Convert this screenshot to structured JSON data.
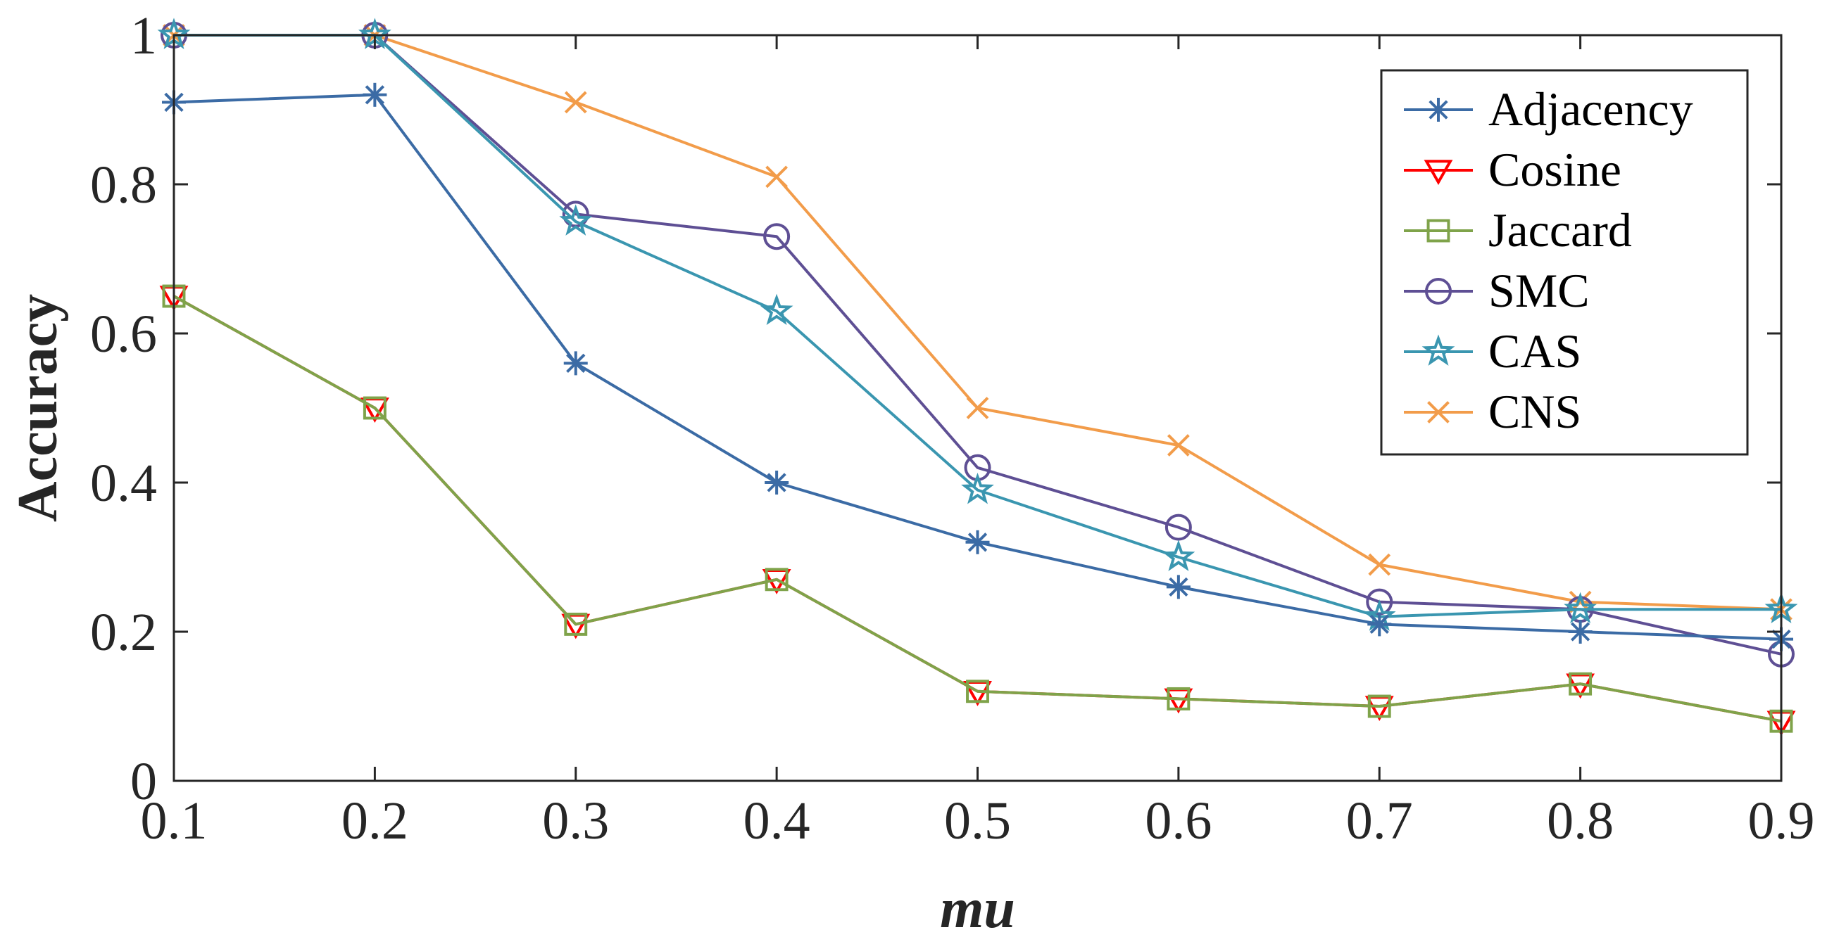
{
  "chart_data": {
    "type": "line",
    "title": "",
    "xlabel": "mu",
    "ylabel": "Accuracy",
    "x": [
      0.1,
      0.2,
      0.3,
      0.4,
      0.5,
      0.6,
      0.7,
      0.8,
      0.9
    ],
    "xlim": [
      0.1,
      0.9
    ],
    "ylim": [
      0,
      1
    ],
    "x_tick_labels": [
      "0.1",
      "0.2",
      "0.3",
      "0.4",
      "0.5",
      "0.6",
      "0.7",
      "0.8",
      "0.9"
    ],
    "x_tick_values": [
      0.1,
      0.2,
      0.3,
      0.4,
      0.5,
      0.6,
      0.7,
      0.8,
      0.9
    ],
    "y_tick_labels": [
      "0",
      "0.2",
      "0.4",
      "0.6",
      "0.8",
      "1"
    ],
    "y_tick_values": [
      0,
      0.2,
      0.4,
      0.6,
      0.8,
      1
    ],
    "grid": false,
    "legend_position": "top-right",
    "series": [
      {
        "name": "Adjacency",
        "color": "#3B6BA5",
        "marker": "asterisk",
        "values": [
          0.91,
          0.92,
          0.56,
          0.4,
          0.32,
          0.26,
          0.21,
          0.2,
          0.19
        ]
      },
      {
        "name": "Cosine",
        "color": "#FF0000",
        "marker": "triangle-down",
        "values": [
          0.65,
          0.5,
          0.21,
          0.27,
          0.12,
          0.11,
          0.1,
          0.13,
          0.08
        ]
      },
      {
        "name": "Jaccard",
        "color": "#7FA34A",
        "marker": "square",
        "values": [
          0.65,
          0.5,
          0.21,
          0.27,
          0.12,
          0.11,
          0.1,
          0.13,
          0.08
        ]
      },
      {
        "name": "SMC",
        "color": "#5E4F94",
        "marker": "circle",
        "values": [
          1.0,
          1.0,
          0.76,
          0.73,
          0.42,
          0.34,
          0.24,
          0.23,
          0.17
        ]
      },
      {
        "name": "CAS",
        "color": "#3A96B0",
        "marker": "star",
        "values": [
          1.0,
          1.0,
          0.75,
          0.63,
          0.39,
          0.3,
          0.22,
          0.23,
          0.23
        ]
      },
      {
        "name": "CNS",
        "color": "#F29C4A",
        "marker": "x",
        "values": [
          1.0,
          1.0,
          0.91,
          0.81,
          0.5,
          0.45,
          0.29,
          0.24,
          0.23
        ]
      }
    ]
  }
}
